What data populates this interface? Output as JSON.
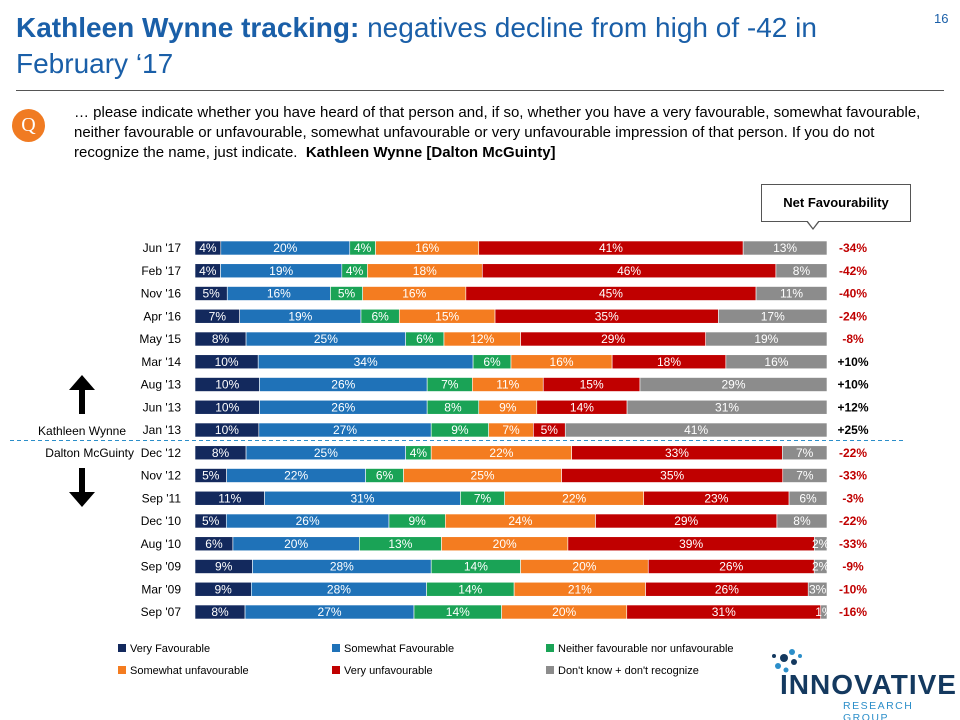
{
  "title": {
    "bold": "Kathleen Wynne tracking:",
    "rest": " negatives decline from high of -42 in February ‘",
    "end": "17",
    "slide_number": "16"
  },
  "question": {
    "badge": "Q",
    "text": "… please indicate whether you have heard of that person and, if so, whether you have a very favourable, somewhat favourable, neither favourable or unfavourable, somewhat unfavourable or very unfavourable impression of that person. If you do not recognize the name, just indicate.",
    "subject": "Kathleen Wynne [Dalton McGuinty]"
  },
  "net_header": "Net Favourability",
  "leader_labels": {
    "wynne": "Kathleen Wynne",
    "mcguinty": "Dalton McGuinty"
  },
  "colors": {
    "very_fav": "#13295d",
    "somewhat_fav": "#1f72b8",
    "neither": "#1aa356",
    "somewhat_unfav": "#f47c20",
    "very_unfav": "#c00000",
    "dont_know": "#8c8c8c",
    "net_positive": "#000000",
    "net_negative": "#c00000"
  },
  "legend": [
    "Very Favourable",
    "Somewhat Favourable",
    "Neither favourable nor unfavourable",
    "Somewhat unfavourable",
    "Very unfavourable",
    "Don't know + don't recognize"
  ],
  "logo": {
    "word": "INNOVATIVE",
    "sub": "RESEARCH GROUP"
  },
  "chart_data": {
    "type": "bar",
    "stacked": true,
    "orientation": "horizontal",
    "unit": "%",
    "categories": [
      "Jun '17",
      "Feb '17",
      "Nov '16",
      "Apr '16",
      "May '15",
      "Mar '14",
      "Aug '13",
      "Jun '13",
      "Jan '13",
      "Dec '12",
      "Nov '12",
      "Sep '11",
      "Dec '10",
      "Aug '10",
      "Sep '09",
      "Mar '09",
      "Sep '07"
    ],
    "series": [
      {
        "name": "Very Favourable",
        "color": "#13295d",
        "values": [
          4,
          4,
          5,
          7,
          8,
          10,
          10,
          10,
          10,
          8,
          5,
          11,
          5,
          6,
          9,
          9,
          8
        ]
      },
      {
        "name": "Somewhat Favourable",
        "color": "#1f72b8",
        "values": [
          20,
          19,
          16,
          19,
          25,
          34,
          26,
          26,
          27,
          25,
          22,
          31,
          26,
          20,
          28,
          28,
          27
        ]
      },
      {
        "name": "Neither favourable nor unfavourable",
        "color": "#1aa356",
        "values": [
          4,
          4,
          5,
          6,
          6,
          6,
          7,
          8,
          9,
          4,
          6,
          7,
          9,
          13,
          14,
          14,
          14
        ]
      },
      {
        "name": "Somewhat unfavourable",
        "color": "#f47c20",
        "values": [
          16,
          18,
          16,
          15,
          12,
          16,
          11,
          9,
          7,
          22,
          25,
          22,
          24,
          20,
          20,
          21,
          20
        ]
      },
      {
        "name": "Very unfavourable",
        "color": "#c00000",
        "values": [
          41,
          46,
          45,
          35,
          29,
          18,
          15,
          14,
          5,
          33,
          35,
          23,
          29,
          39,
          26,
          26,
          31
        ]
      },
      {
        "name": "Don't know + don't recognize",
        "color": "#8c8c8c",
        "values": [
          13,
          8,
          11,
          17,
          19,
          16,
          29,
          31,
          41,
          7,
          7,
          6,
          8,
          2,
          2,
          3,
          1
        ]
      }
    ],
    "net_favourability": [
      "-34%",
      "-42%",
      "-40%",
      "-24%",
      "-8%",
      "+10%",
      "+10%",
      "+12%",
      "+25%",
      "-22%",
      "-33%",
      "-3%",
      "-22%",
      "-33%",
      "-9%",
      "-10%",
      "-16%"
    ],
    "xlim": [
      0,
      100
    ],
    "grid": false,
    "legend_position": "bottom",
    "leader_divider_after": "Jan '13"
  }
}
